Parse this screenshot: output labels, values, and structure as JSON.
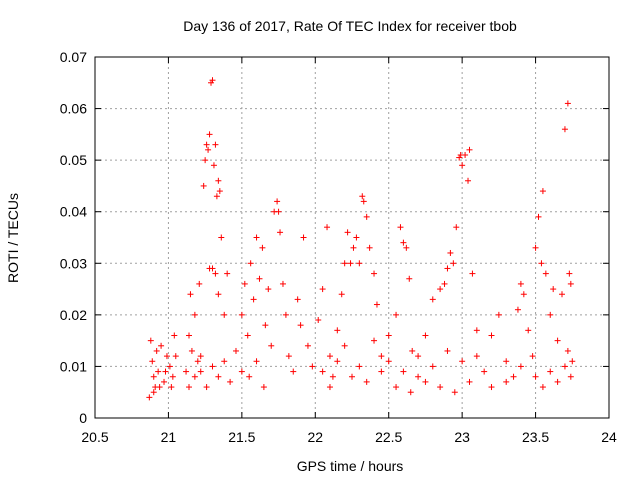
{
  "chart_data": {
    "type": "scatter",
    "title": "Day 136 of 2017, Rate Of TEC Index for receiver tbob",
    "xlabel": "GPS time / hours",
    "ylabel": "ROTI / TECUs",
    "xlim": [
      20.5,
      24
    ],
    "ylim": [
      0,
      0.07
    ],
    "xticks": [
      "20.5",
      "21",
      "21.5",
      "22",
      "22.5",
      "23",
      "23.5",
      "24"
    ],
    "yticks": [
      "0",
      "0.01",
      "0.02",
      "0.03",
      "0.04",
      "0.05",
      "0.06",
      "0.07"
    ],
    "grid": true,
    "marker": "+",
    "marker_color": "#ff0000",
    "series": [
      {
        "points": [
          [
            20.88,
            0.015
          ],
          [
            20.89,
            0.011
          ],
          [
            20.9,
            0.008
          ],
          [
            20.91,
            0.006
          ],
          [
            20.92,
            0.013
          ],
          [
            20.93,
            0.009
          ],
          [
            20.95,
            0.014
          ],
          [
            20.97,
            0.007
          ],
          [
            20.99,
            0.012
          ],
          [
            21.01,
            0.01
          ],
          [
            21.03,
            0.008
          ],
          [
            21.05,
            0.012
          ],
          [
            20.87,
            0.004
          ],
          [
            20.9,
            0.005
          ],
          [
            20.94,
            0.006
          ],
          [
            20.98,
            0.009
          ],
          [
            21.02,
            0.006
          ],
          [
            21.04,
            0.016
          ],
          [
            21.12,
            0.009
          ],
          [
            21.14,
            0.016
          ],
          [
            21.15,
            0.024
          ],
          [
            21.16,
            0.013
          ],
          [
            21.18,
            0.02
          ],
          [
            21.2,
            0.011
          ],
          [
            21.21,
            0.026
          ],
          [
            21.22,
            0.009
          ],
          [
            21.24,
            0.045
          ],
          [
            21.25,
            0.05
          ],
          [
            21.26,
            0.053
          ],
          [
            21.27,
            0.052
          ],
          [
            21.28,
            0.055
          ],
          [
            21.29,
            0.065
          ],
          [
            21.3,
            0.0655
          ],
          [
            21.31,
            0.049
          ],
          [
            21.32,
            0.053
          ],
          [
            21.33,
            0.043
          ],
          [
            21.34,
            0.046
          ],
          [
            21.35,
            0.044
          ],
          [
            21.28,
            0.029
          ],
          [
            21.3,
            0.029
          ],
          [
            21.32,
            0.028
          ],
          [
            21.34,
            0.024
          ],
          [
            21.36,
            0.035
          ],
          [
            21.38,
            0.02
          ],
          [
            21.4,
            0.028
          ],
          [
            21.14,
            0.006
          ],
          [
            21.18,
            0.008
          ],
          [
            21.22,
            0.012
          ],
          [
            21.26,
            0.006
          ],
          [
            21.3,
            0.01
          ],
          [
            21.34,
            0.008
          ],
          [
            21.38,
            0.011
          ],
          [
            21.42,
            0.007
          ],
          [
            21.46,
            0.013
          ],
          [
            21.5,
            0.009
          ],
          [
            21.5,
            0.02
          ],
          [
            21.52,
            0.026
          ],
          [
            21.54,
            0.016
          ],
          [
            21.56,
            0.03
          ],
          [
            21.58,
            0.023
          ],
          [
            21.6,
            0.035
          ],
          [
            21.62,
            0.027
          ],
          [
            21.64,
            0.033
          ],
          [
            21.66,
            0.018
          ],
          [
            21.68,
            0.025
          ],
          [
            21.55,
            0.008
          ],
          [
            21.6,
            0.011
          ],
          [
            21.65,
            0.006
          ],
          [
            21.7,
            0.014
          ],
          [
            21.72,
            0.04
          ],
          [
            21.74,
            0.042
          ],
          [
            21.75,
            0.04
          ],
          [
            21.76,
            0.036
          ],
          [
            21.78,
            0.026
          ],
          [
            21.8,
            0.02
          ],
          [
            21.82,
            0.012
          ],
          [
            21.85,
            0.009
          ],
          [
            21.88,
            0.023
          ],
          [
            21.9,
            0.018
          ],
          [
            21.92,
            0.035
          ],
          [
            21.95,
            0.014
          ],
          [
            21.98,
            0.01
          ],
          [
            22.02,
            0.019
          ],
          [
            22.05,
            0.025
          ],
          [
            22.08,
            0.037
          ],
          [
            22.1,
            0.012
          ],
          [
            22.12,
            0.008
          ],
          [
            22.15,
            0.017
          ],
          [
            22.18,
            0.024
          ],
          [
            22.2,
            0.03
          ],
          [
            22.22,
            0.036
          ],
          [
            22.24,
            0.03
          ],
          [
            22.26,
            0.033
          ],
          [
            22.28,
            0.035
          ],
          [
            22.3,
            0.03
          ],
          [
            22.32,
            0.043
          ],
          [
            22.33,
            0.042
          ],
          [
            22.35,
            0.039
          ],
          [
            22.37,
            0.033
          ],
          [
            22.4,
            0.028
          ],
          [
            22.42,
            0.022
          ],
          [
            22.45,
            0.012
          ],
          [
            22.05,
            0.009
          ],
          [
            22.1,
            0.006
          ],
          [
            22.15,
            0.011
          ],
          [
            22.2,
            0.014
          ],
          [
            22.25,
            0.008
          ],
          [
            22.3,
            0.01
          ],
          [
            22.35,
            0.007
          ],
          [
            22.4,
            0.015
          ],
          [
            22.45,
            0.009
          ],
          [
            22.5,
            0.011
          ],
          [
            22.5,
            0.016
          ],
          [
            22.55,
            0.02
          ],
          [
            22.58,
            0.037
          ],
          [
            22.6,
            0.034
          ],
          [
            22.62,
            0.033
          ],
          [
            22.64,
            0.027
          ],
          [
            22.66,
            0.013
          ],
          [
            22.7,
            0.008
          ],
          [
            22.75,
            0.016
          ],
          [
            22.8,
            0.023
          ],
          [
            22.85,
            0.025
          ],
          [
            22.88,
            0.026
          ],
          [
            22.9,
            0.029
          ],
          [
            22.92,
            0.032
          ],
          [
            22.94,
            0.03
          ],
          [
            22.96,
            0.037
          ],
          [
            22.98,
            0.0505
          ],
          [
            22.99,
            0.051
          ],
          [
            23.0,
            0.049
          ],
          [
            23.02,
            0.051
          ],
          [
            23.04,
            0.046
          ],
          [
            23.05,
            0.052
          ],
          [
            23.07,
            0.028
          ],
          [
            23.1,
            0.017
          ],
          [
            22.55,
            0.006
          ],
          [
            22.6,
            0.009
          ],
          [
            22.65,
            0.005
          ],
          [
            22.7,
            0.012
          ],
          [
            22.75,
            0.007
          ],
          [
            22.8,
            0.01
          ],
          [
            22.85,
            0.006
          ],
          [
            22.9,
            0.013
          ],
          [
            22.95,
            0.005
          ],
          [
            23.0,
            0.011
          ],
          [
            23.05,
            0.007
          ],
          [
            23.1,
            0.012
          ],
          [
            23.15,
            0.009
          ],
          [
            23.2,
            0.016
          ],
          [
            23.25,
            0.02
          ],
          [
            23.3,
            0.011
          ],
          [
            23.35,
            0.008
          ],
          [
            23.38,
            0.021
          ],
          [
            23.4,
            0.026
          ],
          [
            23.42,
            0.024
          ],
          [
            23.45,
            0.017
          ],
          [
            23.48,
            0.012
          ],
          [
            23.5,
            0.033
          ],
          [
            23.52,
            0.039
          ],
          [
            23.54,
            0.03
          ],
          [
            23.55,
            0.044
          ],
          [
            23.57,
            0.028
          ],
          [
            23.6,
            0.02
          ],
          [
            23.62,
            0.025
          ],
          [
            23.65,
            0.015
          ],
          [
            23.68,
            0.024
          ],
          [
            23.7,
            0.056
          ],
          [
            23.72,
            0.061
          ],
          [
            23.73,
            0.028
          ],
          [
            23.74,
            0.026
          ],
          [
            23.75,
            0.011
          ],
          [
            23.2,
            0.006
          ],
          [
            23.3,
            0.007
          ],
          [
            23.4,
            0.01
          ],
          [
            23.5,
            0.008
          ],
          [
            23.55,
            0.006
          ],
          [
            23.6,
            0.009
          ],
          [
            23.65,
            0.007
          ],
          [
            23.7,
            0.01
          ],
          [
            23.72,
            0.013
          ],
          [
            23.74,
            0.008
          ]
        ]
      }
    ]
  }
}
